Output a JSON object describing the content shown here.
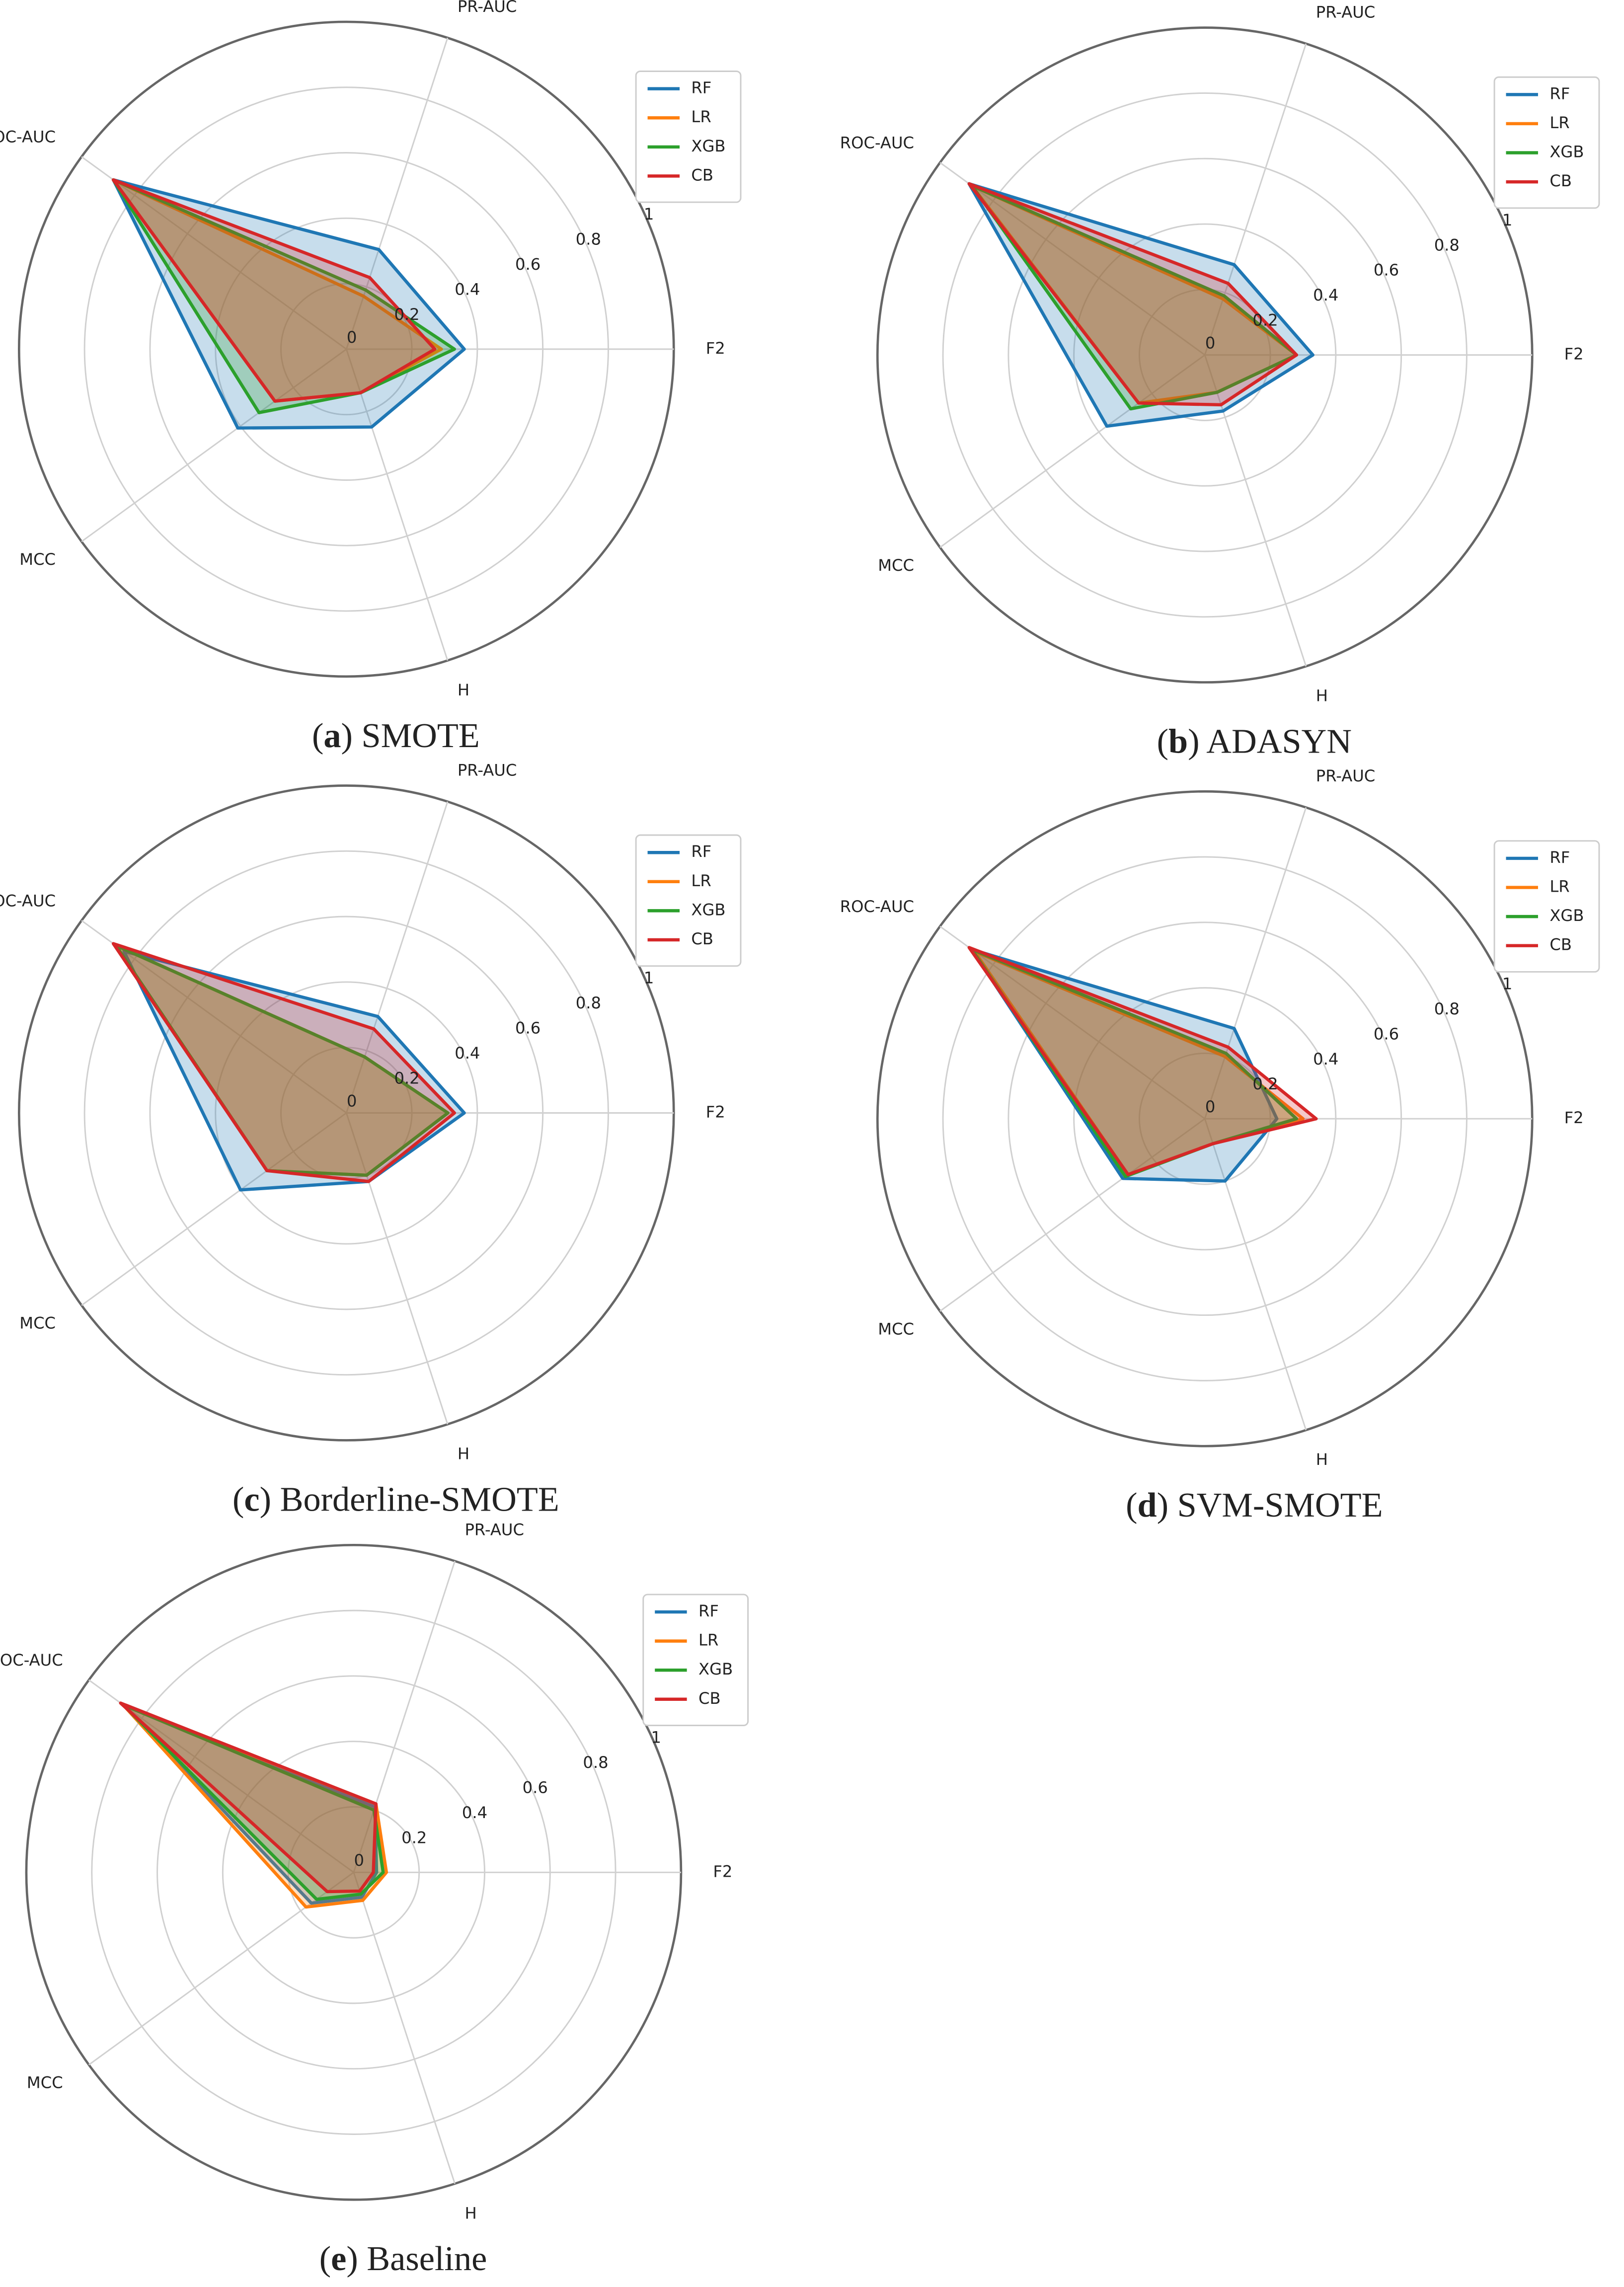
{
  "chart_data": [
    {
      "type": "radar",
      "categories": [
        "F2",
        "PR-AUC",
        "ROC-AUC",
        "MCC",
        "H"
      ],
      "ylim": [
        0,
        1
      ],
      "yticks": [
        0.0,
        0.2,
        0.4,
        0.6,
        0.8,
        1.0
      ],
      "grid": true,
      "legend": "upper right",
      "caption": [
        "(",
        "a",
        ") SMOTE"
      ],
      "series": [
        {
          "name": "RF",
          "color": "#1f77b4",
          "values": [
            0.36,
            0.32,
            0.88,
            0.41,
            0.25
          ]
        },
        {
          "name": "LR",
          "color": "#ff7f0e",
          "values": [
            0.29,
            0.17,
            0.88,
            0.27,
            0.14
          ]
        },
        {
          "name": "XGB",
          "color": "#2ca02c",
          "values": [
            0.33,
            0.19,
            0.88,
            0.33,
            0.14
          ]
        },
        {
          "name": "CB",
          "color": "#d62728",
          "values": [
            0.27,
            0.23,
            0.88,
            0.27,
            0.14
          ]
        }
      ]
    },
    {
      "type": "radar",
      "categories": [
        "F2",
        "PR-AUC",
        "ROC-AUC",
        "MCC",
        "H"
      ],
      "ylim": [
        0,
        1
      ],
      "yticks": [
        0.0,
        0.2,
        0.4,
        0.6,
        0.8,
        1.0
      ],
      "grid": true,
      "legend": "upper right",
      "caption": [
        "(",
        "b",
        ") ADASYN"
      ],
      "series": [
        {
          "name": "RF",
          "color": "#1f77b4",
          "values": [
            0.33,
            0.29,
            0.89,
            0.37,
            0.18
          ]
        },
        {
          "name": "LR",
          "color": "#ff7f0e",
          "values": [
            0.28,
            0.18,
            0.88,
            0.25,
            0.12
          ]
        },
        {
          "name": "XGB",
          "color": "#2ca02c",
          "values": [
            0.28,
            0.19,
            0.88,
            0.28,
            0.12
          ]
        },
        {
          "name": "CB",
          "color": "#d62728",
          "values": [
            0.28,
            0.23,
            0.89,
            0.25,
            0.16
          ]
        }
      ]
    },
    {
      "type": "radar",
      "categories": [
        "F2",
        "PR-AUC",
        "ROC-AUC",
        "MCC",
        "H"
      ],
      "ylim": [
        0,
        1
      ],
      "yticks": [
        0.0,
        0.2,
        0.4,
        0.6,
        0.8,
        1.0
      ],
      "grid": true,
      "legend": "upper right",
      "caption": [
        "(",
        "c",
        ") Borderline-SMOTE"
      ],
      "series": [
        {
          "name": "RF",
          "color": "#1f77b4",
          "values": [
            0.36,
            0.31,
            0.84,
            0.4,
            0.22
          ]
        },
        {
          "name": "LR",
          "color": "#ff7f0e",
          "values": [
            0.31,
            0.18,
            0.87,
            0.3,
            0.2
          ]
        },
        {
          "name": "XGB",
          "color": "#2ca02c",
          "values": [
            0.31,
            0.18,
            0.87,
            0.3,
            0.2
          ]
        },
        {
          "name": "CB",
          "color": "#d62728",
          "values": [
            0.33,
            0.27,
            0.88,
            0.3,
            0.22
          ]
        }
      ]
    },
    {
      "type": "radar",
      "categories": [
        "F2",
        "PR-AUC",
        "ROC-AUC",
        "MCC",
        "H"
      ],
      "ylim": [
        0,
        1
      ],
      "yticks": [
        0.0,
        0.2,
        0.4,
        0.6,
        0.8,
        1.0
      ],
      "grid": true,
      "legend": "upper right",
      "caption": [
        "(",
        "d",
        ") SVM-SMOTE"
      ],
      "series": [
        {
          "name": "RF",
          "color": "#1f77b4",
          "values": [
            0.22,
            0.29,
            0.88,
            0.31,
            0.2
          ]
        },
        {
          "name": "LR",
          "color": "#ff7f0e",
          "values": [
            0.3,
            0.2,
            0.87,
            0.29,
            0.08
          ]
        },
        {
          "name": "XGB",
          "color": "#2ca02c",
          "values": [
            0.28,
            0.21,
            0.88,
            0.3,
            0.08
          ]
        },
        {
          "name": "CB",
          "color": "#d62728",
          "values": [
            0.34,
            0.23,
            0.89,
            0.29,
            0.08
          ]
        }
      ]
    },
    {
      "type": "radar",
      "categories": [
        "F2",
        "PR-AUC",
        "ROC-AUC",
        "MCC",
        "H"
      ],
      "ylim": [
        0,
        1
      ],
      "yticks": [
        0.0,
        0.2,
        0.4,
        0.6,
        0.8,
        1.0
      ],
      "grid": true,
      "legend": "upper right",
      "caption": [
        "(",
        "e",
        ") Baseline"
      ],
      "series": [
        {
          "name": "RF",
          "color": "#1f77b4",
          "values": [
            0.07,
            0.21,
            0.87,
            0.16,
            0.08
          ]
        },
        {
          "name": "LR",
          "color": "#ff7f0e",
          "values": [
            0.1,
            0.22,
            0.87,
            0.18,
            0.09
          ]
        },
        {
          "name": "XGB",
          "color": "#2ca02c",
          "values": [
            0.09,
            0.2,
            0.87,
            0.14,
            0.07
          ]
        },
        {
          "name": "CB",
          "color": "#d62728",
          "values": [
            0.06,
            0.22,
            0.88,
            0.1,
            0.06
          ]
        }
      ]
    }
  ]
}
